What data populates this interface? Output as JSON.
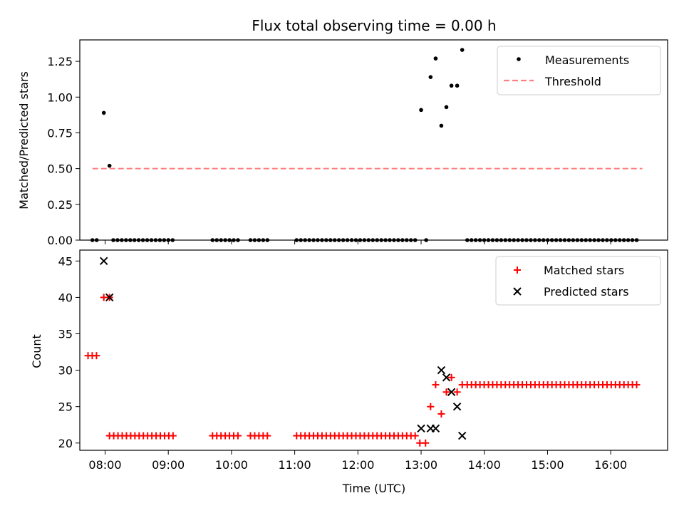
{
  "chart_data": {
    "title": "Flux total observing time = 0.00 h",
    "xlabel": "Time (UTC)",
    "x_ticks": [
      "08:00",
      "09:00",
      "10:00",
      "11:00",
      "12:00",
      "13:00",
      "14:00",
      "15:00",
      "16:00"
    ],
    "x_tick_hours": [
      8,
      9,
      10,
      11,
      12,
      13,
      14,
      15,
      16
    ],
    "xlim_hours": [
      7.6,
      16.9
    ],
    "panels": [
      {
        "type": "scatter",
        "ylabel": "Matched/Predicted stars",
        "ylim": [
          0,
          1.4
        ],
        "y_ticks": [
          "0.00",
          "0.25",
          "0.50",
          "0.75",
          "1.00",
          "1.25"
        ],
        "y_tick_values": [
          0,
          0.25,
          0.5,
          0.75,
          1.0,
          1.25
        ],
        "legend": [
          "Measurements",
          "Threshold"
        ],
        "threshold": {
          "value": 0.5,
          "x_start": 7.8,
          "x_end": 16.5
        },
        "measurements_nonzero": [
          {
            "t": 7.98,
            "v": 0.89
          },
          {
            "t": 8.07,
            "v": 0.52
          },
          {
            "t": 13.0,
            "v": 0.91
          },
          {
            "t": 13.15,
            "v": 1.14
          },
          {
            "t": 13.23,
            "v": 1.27
          },
          {
            "t": 13.32,
            "v": 0.8
          },
          {
            "t": 13.4,
            "v": 0.93
          },
          {
            "t": 13.48,
            "v": 1.08
          },
          {
            "t": 13.57,
            "v": 1.08
          },
          {
            "t": 13.65,
            "v": 1.33
          }
        ],
        "zero_segments": [
          [
            7.8,
            7.88
          ],
          [
            8.13,
            9.13
          ],
          [
            9.7,
            10.13
          ],
          [
            10.3,
            10.6
          ],
          [
            11.03,
            12.93
          ],
          [
            13.73,
            16.47
          ]
        ],
        "zero_singles": [
          13.08
        ],
        "zero_step": 0.067
      },
      {
        "type": "scatter",
        "ylabel": "Count",
        "ylim": [
          19,
          46.5
        ],
        "y_ticks": [
          "20",
          "25",
          "30",
          "35",
          "40",
          "45"
        ],
        "y_tick_values": [
          20,
          25,
          30,
          35,
          40,
          45
        ],
        "legend": [
          "Matched stars",
          "Predicted stars"
        ],
        "matched_segments": [
          {
            "t0": 7.73,
            "t1": 7.93,
            "v": 32
          },
          {
            "t0": 8.07,
            "t1": 9.13,
            "v": 21
          },
          {
            "t0": 9.7,
            "t1": 10.13,
            "v": 21
          },
          {
            "t0": 10.3,
            "t1": 10.6,
            "v": 21
          },
          {
            "t0": 11.03,
            "t1": 12.93,
            "v": 21
          },
          {
            "t0": 13.73,
            "t1": 16.47,
            "v": 28
          }
        ],
        "matched_points": [
          {
            "t": 7.98,
            "v": 40
          },
          {
            "t": 8.07,
            "v": 40
          },
          {
            "t": 12.98,
            "v": 20
          },
          {
            "t": 13.07,
            "v": 20
          },
          {
            "t": 13.15,
            "v": 25
          },
          {
            "t": 13.23,
            "v": 28
          },
          {
            "t": 13.32,
            "v": 24
          },
          {
            "t": 13.4,
            "v": 27
          },
          {
            "t": 13.48,
            "v": 29
          },
          {
            "t": 13.57,
            "v": 27
          },
          {
            "t": 13.65,
            "v": 28
          }
        ],
        "matched_step": 0.067,
        "predicted_points": [
          {
            "t": 7.98,
            "v": 45
          },
          {
            "t": 8.07,
            "v": 40
          },
          {
            "t": 13.0,
            "v": 22
          },
          {
            "t": 13.15,
            "v": 22
          },
          {
            "t": 13.23,
            "v": 22
          },
          {
            "t": 13.32,
            "v": 30
          },
          {
            "t": 13.4,
            "v": 29
          },
          {
            "t": 13.48,
            "v": 27
          },
          {
            "t": 13.57,
            "v": 25
          },
          {
            "t": 13.65,
            "v": 21
          }
        ]
      }
    ]
  },
  "colors": {
    "matched": "#ff0000",
    "predicted": "#000000",
    "measurement": "#000000",
    "threshold": "#ff7f7f"
  }
}
